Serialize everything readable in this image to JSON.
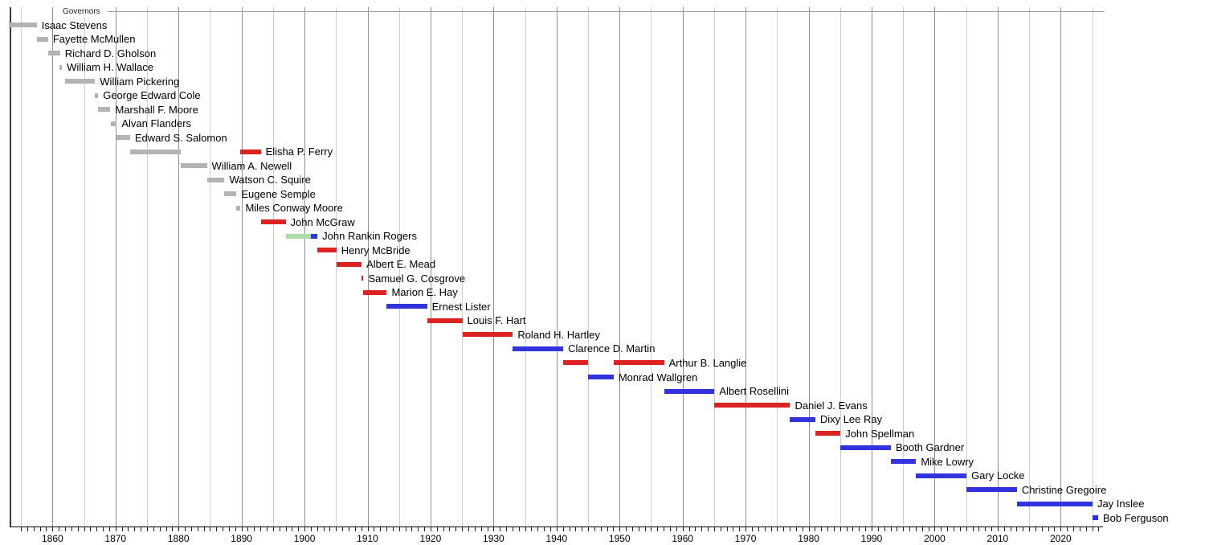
{
  "chart_data": {
    "type": "timeline",
    "title": "Governors",
    "subject": "Terms of governors of Washington shown as horizontal bars on a year axis",
    "axis": {
      "xmin": 1853.2,
      "xmax": 2026.5,
      "unit": "year",
      "decade_tick_labels": [
        1860,
        1870,
        1880,
        1890,
        1900,
        1910,
        1920,
        1930,
        1940,
        1950,
        1960,
        1970,
        1980,
        1990,
        2000,
        2010,
        2020
      ],
      "grid_interval_years": 5,
      "minor_tick_interval_years": 1,
      "grid": "on",
      "legend_position": "none"
    },
    "colors": {
      "territorial": "#b3b3b3",
      "republican": "#dd2222",
      "democrat": "#3333dd",
      "populist": "#aaddaa"
    },
    "governors": [
      {
        "name": "Isaac Stevens",
        "bars": [
          {
            "start": 1853.1,
            "end": 1857.5,
            "party": "territorial"
          }
        ]
      },
      {
        "name": "Fayette McMullen",
        "bars": [
          {
            "start": 1857.5,
            "end": 1859.3,
            "party": "territorial"
          }
        ]
      },
      {
        "name": "Richard D. Gholson",
        "bars": [
          {
            "start": 1859.3,
            "end": 1861.2,
            "party": "territorial"
          }
        ]
      },
      {
        "name": "William H. Wallace",
        "bars": [
          {
            "start": 1861.1,
            "end": 1861.5,
            "party": "territorial"
          }
        ]
      },
      {
        "name": "William Pickering",
        "bars": [
          {
            "start": 1862.0,
            "end": 1866.75,
            "party": "territorial"
          }
        ]
      },
      {
        "name": "George Edward Cole",
        "bars": [
          {
            "start": 1866.75,
            "end": 1867.25,
            "party": "territorial"
          }
        ]
      },
      {
        "name": "Marshall F. Moore",
        "bars": [
          {
            "start": 1867.25,
            "end": 1869.2,
            "party": "territorial"
          }
        ]
      },
      {
        "name": "Alvan Flanders",
        "bars": [
          {
            "start": 1869.2,
            "end": 1870.2,
            "party": "territorial"
          }
        ]
      },
      {
        "name": "Edward S. Salomon",
        "bars": [
          {
            "start": 1870.2,
            "end": 1872.3,
            "party": "territorial"
          }
        ]
      },
      {
        "name": "Elisha P. Ferry",
        "bars": [
          {
            "start": 1872.3,
            "end": 1880.3,
            "party": "territorial"
          },
          {
            "start": 1889.85,
            "end": 1893.05,
            "party": "republican"
          }
        ]
      },
      {
        "name": "William A. Newell",
        "bars": [
          {
            "start": 1880.3,
            "end": 1884.5,
            "party": "territorial"
          }
        ]
      },
      {
        "name": "Watson C. Squire",
        "bars": [
          {
            "start": 1884.5,
            "end": 1887.3,
            "party": "territorial"
          }
        ]
      },
      {
        "name": "Eugene Semple",
        "bars": [
          {
            "start": 1887.3,
            "end": 1889.2,
            "party": "territorial"
          }
        ]
      },
      {
        "name": "Miles Conway Moore",
        "bars": [
          {
            "start": 1889.2,
            "end": 1889.85,
            "party": "territorial"
          }
        ]
      },
      {
        "name": "John McGraw",
        "bars": [
          {
            "start": 1893.05,
            "end": 1897.0,
            "party": "republican"
          }
        ]
      },
      {
        "name": "John Rankin Rogers",
        "bars": [
          {
            "start": 1897.0,
            "end": 1901.0,
            "party": "populist"
          },
          {
            "start": 1901.0,
            "end": 1902.05,
            "party": "democrat"
          }
        ]
      },
      {
        "name": "Henry McBride",
        "bars": [
          {
            "start": 1902.05,
            "end": 1905.05,
            "party": "republican"
          }
        ]
      },
      {
        "name": "Albert E. Mead",
        "bars": [
          {
            "start": 1905.05,
            "end": 1909.05,
            "party": "republican"
          }
        ]
      },
      {
        "name": "Samuel G. Cosgrove",
        "bars": [
          {
            "start": 1909.1,
            "end": 1909.35,
            "party": "republican"
          }
        ]
      },
      {
        "name": "Marion E. Hay",
        "bars": [
          {
            "start": 1909.35,
            "end": 1913.05,
            "party": "republican"
          }
        ]
      },
      {
        "name": "Ernest Lister",
        "bars": [
          {
            "start": 1913.05,
            "end": 1919.45,
            "party": "democrat"
          }
        ]
      },
      {
        "name": "Louis F. Hart",
        "bars": [
          {
            "start": 1919.45,
            "end": 1925.05,
            "party": "republican"
          }
        ]
      },
      {
        "name": "Roland H. Hartley",
        "bars": [
          {
            "start": 1925.05,
            "end": 1933.05,
            "party": "republican"
          }
        ]
      },
      {
        "name": "Clarence D. Martin",
        "bars": [
          {
            "start": 1933.05,
            "end": 1941.05,
            "party": "democrat"
          }
        ]
      },
      {
        "name": "Arthur B. Langlie",
        "bars": [
          {
            "start": 1941.05,
            "end": 1945.05,
            "party": "republican"
          },
          {
            "start": 1949.05,
            "end": 1957.05,
            "party": "republican"
          }
        ]
      },
      {
        "name": "Monrad Wallgren",
        "bars": [
          {
            "start": 1945.05,
            "end": 1949.05,
            "party": "democrat"
          }
        ]
      },
      {
        "name": "Albert Rosellini",
        "bars": [
          {
            "start": 1957.05,
            "end": 1965.05,
            "party": "democrat"
          }
        ]
      },
      {
        "name": "Daniel J. Evans",
        "bars": [
          {
            "start": 1965.05,
            "end": 1977.05,
            "party": "republican"
          }
        ]
      },
      {
        "name": "Dixy Lee Ray",
        "bars": [
          {
            "start": 1977.05,
            "end": 1981.05,
            "party": "democrat"
          }
        ]
      },
      {
        "name": "John Spellman",
        "bars": [
          {
            "start": 1981.05,
            "end": 1985.05,
            "party": "republican"
          }
        ]
      },
      {
        "name": "Booth Gardner",
        "bars": [
          {
            "start": 1985.05,
            "end": 1993.05,
            "party": "democrat"
          }
        ]
      },
      {
        "name": "Mike Lowry",
        "bars": [
          {
            "start": 1993.05,
            "end": 1997.05,
            "party": "democrat"
          }
        ]
      },
      {
        "name": "Gary Locke",
        "bars": [
          {
            "start": 1997.05,
            "end": 2005.05,
            "party": "democrat"
          }
        ]
      },
      {
        "name": "Christine Gregoire",
        "bars": [
          {
            "start": 2005.05,
            "end": 2013.05,
            "party": "democrat"
          }
        ]
      },
      {
        "name": "Jay Inslee",
        "bars": [
          {
            "start": 2013.05,
            "end": 2025.05,
            "party": "democrat"
          }
        ]
      },
      {
        "name": "Bob Ferguson",
        "bars": [
          {
            "start": 2025.05,
            "end": 2025.95,
            "party": "democrat"
          }
        ]
      }
    ]
  }
}
